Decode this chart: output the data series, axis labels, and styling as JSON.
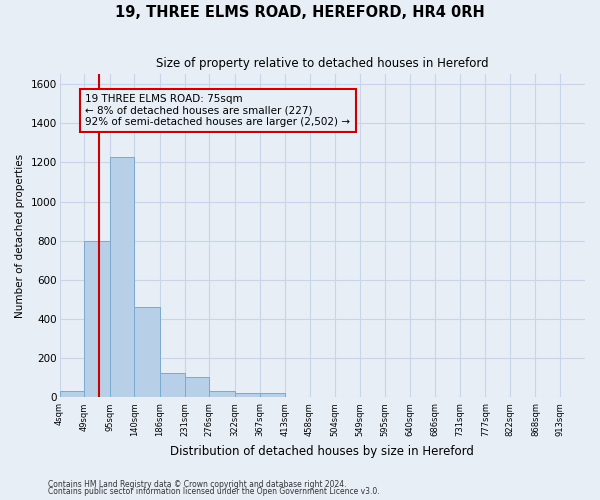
{
  "title": "19, THREE ELMS ROAD, HEREFORD, HR4 0RH",
  "subtitle": "Size of property relative to detached houses in Hereford",
  "xlabel": "Distribution of detached houses by size in Hereford",
  "ylabel": "Number of detached properties",
  "footnote1": "Contains HM Land Registry data © Crown copyright and database right 2024.",
  "footnote2": "Contains public sector information licensed under the Open Government Licence v3.0.",
  "bin_edges": [
    4,
    49,
    95,
    140,
    186,
    231,
    276,
    322,
    367,
    413,
    458,
    504,
    549,
    595,
    640,
    686,
    731,
    777,
    822,
    868,
    913
  ],
  "bar_heights": [
    30,
    800,
    1230,
    460,
    125,
    105,
    30,
    20,
    20,
    0,
    0,
    0,
    0,
    0,
    0,
    0,
    0,
    0,
    0,
    0
  ],
  "bar_color": "#b8cfe8",
  "bar_edge_color": "#7aaad0",
  "bg_color": "#e8eef6",
  "grid_color": "#c8d4e8",
  "property_size": 75,
  "vline_color": "#cc0000",
  "annotation_text": "19 THREE ELMS ROAD: 75sqm\n← 8% of detached houses are smaller (227)\n92% of semi-detached houses are larger (2,502) →",
  "annotation_box_color": "#cc0000",
  "ylim": [
    0,
    1650
  ],
  "yticks": [
    0,
    200,
    400,
    600,
    800,
    1000,
    1200,
    1400,
    1600
  ]
}
